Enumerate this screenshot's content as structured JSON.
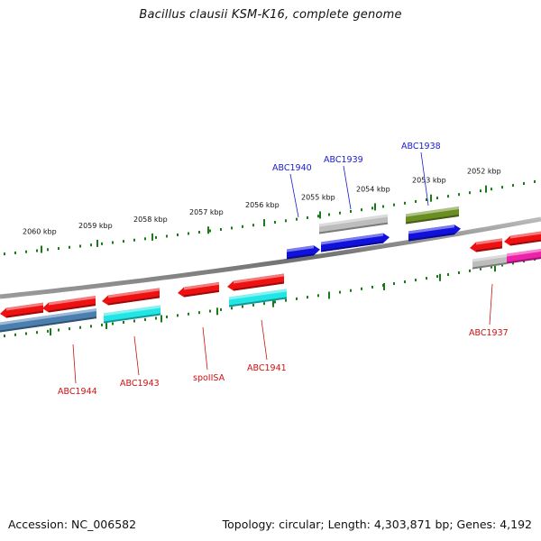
{
  "title": "Bacillus clausii KSM-K16, complete genome",
  "footer": {
    "accession": "Accession: NC_006582",
    "topology": "Topology: circular",
    "length": "Length: 4,303,871 bp",
    "genes": "Genes: 4,192"
  },
  "colors": {
    "backbone": "#7a7a7a",
    "ticks": "#1a7a1a",
    "forward_label": "#1a1acc",
    "reverse_label": "#cc1111",
    "red": "#ee1111",
    "blue": "#1111dd",
    "grey": "#bdbdbd",
    "olive": "#6b8e23",
    "cyan": "#22e6e6",
    "steel": "#4a7fb0",
    "magenta": "#ee22aa"
  },
  "scale": {
    "tick_labels": [
      "2060 kbp",
      "2059 kbp",
      "2058 kbp",
      "2057 kbp",
      "2056 kbp",
      "2055 kbp",
      "2054 kbp",
      "2053 kbp",
      "2052 kbp"
    ]
  },
  "genes": {
    "forward": [
      "ABC1940",
      "ABC1939",
      "ABC1938"
    ],
    "reverse": [
      "ABC1944",
      "ABC1943",
      "spoIISA",
      "ABC1941",
      "ABC1937"
    ]
  }
}
